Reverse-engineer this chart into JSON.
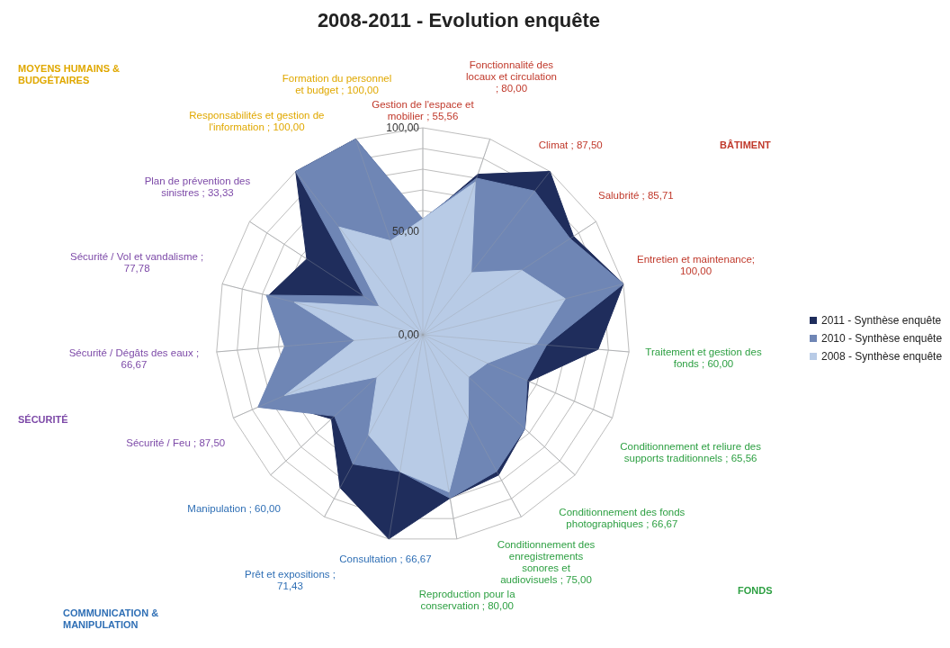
{
  "chart_data": {
    "type": "radar",
    "title": "2008-2011 - Evolution enquête",
    "categories": [
      "Gestion de l'espace et mobilier ; 55,56",
      "Fonctionnalité des locaux et circulation ; 80,00",
      "Climat ; 87,50",
      "Salubrité ; 85,71",
      "Entretien et maintenance; 100,00",
      "Traitement et gestion des fonds ; 60,00",
      "Conditionnement et reliure des supports traditionnels ; 65,56",
      "Conditionnement des fonds photographiques ; 66,67",
      "Conditionnement des enregistrements sonores et audiovisuels ; 75,00",
      "Reproduction pour la conservation ; 80,00",
      "Consultation ; 66,67",
      "Prêt et expositions ; 71,43",
      "Manipulation ; 60,00",
      "Sécurité / Feu ; 87,50",
      "Sécurité / Dégâts des eaux ; 66,67",
      "Sécurité / Vol et vandalisme ; 77,78",
      "Plan de prévention des sinistres ; 33,33",
      "Responsabilités et gestion de l'information ; 100,00",
      "Formation du personnel et budget ; 100,00"
    ],
    "series": [
      {
        "name": "2011 - Synthèse enquête",
        "color": "#1f2d5c",
        "values": [
          55,
          82,
          100,
          87,
          100,
          85,
          56,
          67,
          77,
          80,
          100,
          84,
          60,
          80,
          66,
          77,
          67,
          100,
          100
        ]
      },
      {
        "name": "2010 - Synthèse enquête",
        "color": "#6f86b5",
        "values": [
          56,
          80,
          88,
          85,
          100,
          60,
          55,
          67,
          75,
          80,
          67,
          71,
          58,
          87,
          67,
          78,
          34,
          100,
          100
        ]
      },
      {
        "name": "2008 - Synthèse enquête",
        "color": "#b8cbe6",
        "values": [
          56,
          78,
          38,
          57,
          71,
          55,
          34,
          30,
          46,
          77,
          67,
          55,
          30,
          73,
          33,
          64,
          25,
          66,
          48
        ]
      }
    ],
    "ylim": [
      0,
      100
    ],
    "yticks": [
      {
        "value": 0,
        "label": "0,00"
      },
      {
        "value": 50,
        "label": "50,00"
      },
      {
        "value": 100,
        "label": "100,00"
      }
    ],
    "grid": true,
    "legend": "right",
    "annotations": [
      "MOYENS HUMAINS & BUDGÉTAIRES",
      "BÂTIMENT",
      "SÉCURITÉ",
      "FONDS",
      "COMMUNICATION & MANIPULATION"
    ]
  }
}
